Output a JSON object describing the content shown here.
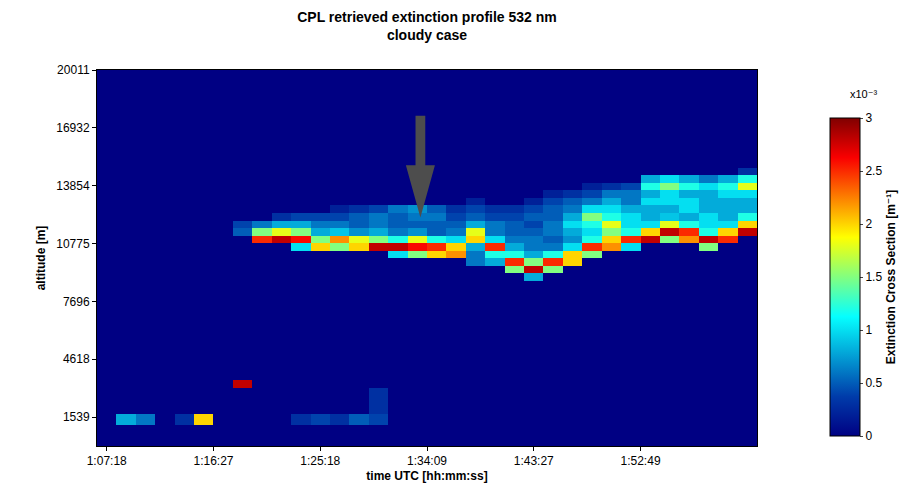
{
  "chart_data": {
    "type": "heatmap",
    "title": "CPL retrieved extinction profile 532 nm",
    "subtitle": "cloudy case",
    "xlabel": "time UTC [hh:mm:ss]",
    "ylabel": "altitude [m]",
    "colorbar_title": "Extinction Cross Section [m⁻¹]",
    "colorbar_multiplier": "x10⁻³",
    "xlim": [
      0,
      680
    ],
    "xticks": [
      {
        "value": 10,
        "label": "1:07:18"
      },
      {
        "value": 120,
        "label": "1:16:27"
      },
      {
        "value": 230,
        "label": "1:25:18"
      },
      {
        "value": 340,
        "label": "1:34:09"
      },
      {
        "value": 450,
        "label": "1:43:27"
      },
      {
        "value": 560,
        "label": "1:52:49"
      }
    ],
    "ylim": [
      0,
      20011
    ],
    "yticks": [
      1539,
      4618,
      7696,
      10775,
      13854,
      16932,
      20011
    ],
    "zlim": [
      0,
      3
    ],
    "zticks": [
      0,
      0.5,
      1,
      1.5,
      2,
      2.5,
      3
    ],
    "x": [
      0,
      20,
      40,
      60,
      80,
      100,
      120,
      140,
      160,
      180,
      200,
      220,
      240,
      260,
      280,
      300,
      320,
      340,
      360,
      380,
      400,
      420,
      440,
      460,
      480,
      500,
      520,
      540,
      560,
      580,
      600,
      620,
      640,
      660,
      680
    ],
    "y": [
      0,
      1100,
      1700,
      3100,
      3500,
      8800,
      9200,
      9600,
      10000,
      10400,
      10800,
      11200,
      11600,
      12000,
      12400,
      12800,
      13200,
      13600,
      14000,
      14400,
      14800,
      20011
    ],
    "cells": [
      [
        0,
        0,
        0,
        0,
        0,
        0,
        0,
        0,
        0,
        0,
        0,
        0,
        0,
        0,
        0,
        0,
        0,
        0,
        0,
        0,
        0,
        0,
        0,
        0,
        0,
        0,
        0,
        0,
        0,
        0,
        0,
        0,
        0,
        0
      ],
      [
        0,
        0.8,
        0.6,
        0,
        0.3,
        2.0,
        0,
        0,
        0,
        0,
        0.3,
        0.4,
        0.3,
        0.5,
        0.4,
        0,
        0,
        0,
        0,
        0,
        0,
        0,
        0,
        0,
        0,
        0,
        0,
        0,
        0,
        0,
        0,
        0,
        0,
        0
      ],
      [
        0,
        0,
        0,
        0,
        0,
        0,
        0,
        0,
        0,
        0,
        0,
        0,
        0,
        0,
        0.3,
        0,
        0,
        0,
        0,
        0,
        0,
        0,
        0,
        0,
        0,
        0,
        0,
        0,
        0,
        0,
        0,
        0,
        0,
        0
      ],
      [
        0,
        0,
        0,
        0,
        0,
        0,
        0,
        2.8,
        0,
        0,
        0,
        0,
        0,
        0,
        0,
        0,
        0,
        0,
        0,
        0,
        0,
        0,
        0,
        0,
        0,
        0,
        0,
        0,
        0,
        0,
        0,
        0,
        0,
        0
      ],
      [
        0,
        0,
        0,
        0,
        0,
        0,
        0,
        0,
        0,
        0,
        0,
        0,
        0,
        0,
        0,
        0,
        0,
        0,
        0,
        0,
        0,
        0,
        0,
        0,
        0,
        0,
        0,
        0,
        0,
        0,
        0,
        0,
        0,
        0
      ],
      [
        0,
        0,
        0,
        0,
        0,
        0,
        0,
        0,
        0,
        0,
        0,
        0,
        0,
        0,
        0,
        0,
        0,
        0,
        0,
        0,
        0,
        0,
        0.8,
        0,
        0,
        0,
        0,
        0,
        0,
        0,
        0,
        0,
        0,
        0
      ],
      [
        0,
        0,
        0,
        0,
        0,
        0,
        0,
        0,
        0,
        0,
        0,
        0,
        0,
        0,
        0,
        0,
        0,
        0,
        0,
        0,
        0,
        1.5,
        2.8,
        1.5,
        0,
        0,
        0,
        0,
        0,
        0,
        0,
        0,
        0,
        0
      ],
      [
        0,
        0,
        0,
        0,
        0,
        0,
        0,
        0,
        0,
        0,
        0,
        0,
        0,
        0,
        0,
        0,
        0,
        0,
        0,
        0.6,
        0.8,
        2.5,
        1.5,
        2.5,
        2.0,
        0,
        0,
        0,
        0,
        0,
        0,
        0,
        0,
        0
      ],
      [
        0,
        0,
        0,
        0,
        0,
        0,
        0,
        0,
        0,
        0,
        0,
        0,
        0,
        0,
        0,
        1.0,
        1.5,
        2.0,
        2.2,
        0.6,
        1.2,
        1.2,
        0.8,
        1.2,
        2.0,
        1.5,
        0,
        0,
        0,
        0,
        0,
        0,
        0,
        0
      ],
      [
        0,
        0,
        0,
        0,
        0,
        0,
        0,
        0,
        0,
        0,
        1.0,
        2.0,
        1.5,
        2.0,
        2.8,
        2.8,
        2.6,
        2.5,
        2.0,
        0.8,
        2.5,
        0.8,
        0.6,
        0.6,
        1.0,
        2.5,
        2.2,
        1.0,
        0,
        0,
        0,
        1.5,
        0,
        0
      ],
      [
        0,
        0,
        0,
        0,
        0,
        0,
        0,
        0,
        2.5,
        2.8,
        2.6,
        1.5,
        2.2,
        1.8,
        1.5,
        1.2,
        1.8,
        1.2,
        1.0,
        2.0,
        1.0,
        0.6,
        0.6,
        0.5,
        0.7,
        1.2,
        2.0,
        2.5,
        2.8,
        1.5,
        2.2,
        2.8,
        2.5,
        0
      ],
      [
        0,
        0,
        0,
        0,
        0,
        0,
        0,
        0.5,
        1.5,
        1.8,
        1.5,
        0.8,
        0.9,
        0.7,
        0.8,
        0.6,
        0.7,
        0.5,
        0.6,
        1.8,
        0.6,
        0.5,
        0.5,
        0.6,
        0.8,
        1.0,
        1.5,
        1.2,
        2.0,
        2.8,
        2.5,
        1.2,
        2.0,
        2.8
      ],
      [
        0,
        0,
        0,
        0,
        0,
        0,
        0,
        0.4,
        0.6,
        0.8,
        0.8,
        0.6,
        0.6,
        0.5,
        0.6,
        0.5,
        0.5,
        0.5,
        0.5,
        0.8,
        0.6,
        0.5,
        0.4,
        0.6,
        1.0,
        1.2,
        1.8,
        1.0,
        1.0,
        1.8,
        1.2,
        1.0,
        1.0,
        2.0
      ],
      [
        0,
        0,
        0,
        0,
        0,
        0,
        0,
        0,
        0,
        0.3,
        0.4,
        0.4,
        0.4,
        0.5,
        0.6,
        0.5,
        0.6,
        0.6,
        0.4,
        0.5,
        0.4,
        0.4,
        0.5,
        0.5,
        0.8,
        1.5,
        1.2,
        1.0,
        0.8,
        0.9,
        0.8,
        1.0,
        0.8,
        1.2
      ],
      [
        0,
        0,
        0,
        0,
        0,
        0,
        0,
        0,
        0,
        0,
        0,
        0,
        0.2,
        0.3,
        0.4,
        0.6,
        0.7,
        0.5,
        0.3,
        0.4,
        0.3,
        0.3,
        0.4,
        0.5,
        0.6,
        1.0,
        1.0,
        0.8,
        0.8,
        0.8,
        1.0,
        0.8,
        0.8,
        0.8
      ],
      [
        0,
        0,
        0,
        0,
        0,
        0,
        0,
        0,
        0,
        0,
        0,
        0,
        0,
        0,
        0,
        0,
        0,
        0,
        0,
        0.2,
        0,
        0,
        0.2,
        0.4,
        0.5,
        0.6,
        0.8,
        0.6,
        1.0,
        1.0,
        1.0,
        0.8,
        0.8,
        0.8
      ],
      [
        0,
        0,
        0,
        0,
        0,
        0,
        0,
        0,
        0,
        0,
        0,
        0,
        0,
        0,
        0,
        0,
        0,
        0,
        0,
        0,
        0,
        0,
        0,
        0.2,
        0.3,
        0.4,
        0.6,
        0.6,
        0.8,
        1.0,
        0.8,
        0.8,
        1.0,
        1.0
      ],
      [
        0,
        0,
        0,
        0,
        0,
        0,
        0,
        0,
        0,
        0,
        0,
        0,
        0,
        0,
        0,
        0,
        0,
        0,
        0,
        0,
        0,
        0,
        0,
        0,
        0,
        0.2,
        0.3,
        0.4,
        1.2,
        1.5,
        1.2,
        1.0,
        1.2,
        1.8
      ],
      [
        0,
        0,
        0,
        0,
        0,
        0,
        0,
        0,
        0,
        0,
        0,
        0,
        0,
        0,
        0,
        0,
        0,
        0,
        0,
        0,
        0,
        0,
        0,
        0,
        0,
        0,
        0,
        0,
        0.8,
        1.0,
        0.8,
        0.6,
        0.8,
        1.2
      ],
      [
        0,
        0,
        0,
        0,
        0,
        0,
        0,
        0,
        0,
        0,
        0,
        0,
        0,
        0,
        0,
        0,
        0,
        0,
        0,
        0,
        0,
        0,
        0,
        0,
        0,
        0,
        0,
        0,
        0,
        0,
        0,
        0,
        0,
        0.3
      ],
      [
        0,
        0,
        0,
        0,
        0,
        0,
        0,
        0,
        0,
        0,
        0,
        0,
        0,
        0,
        0,
        0,
        0,
        0,
        0,
        0,
        0,
        0,
        0,
        0,
        0,
        0,
        0,
        0,
        0,
        0,
        0,
        0,
        0,
        0
      ]
    ]
  }
}
